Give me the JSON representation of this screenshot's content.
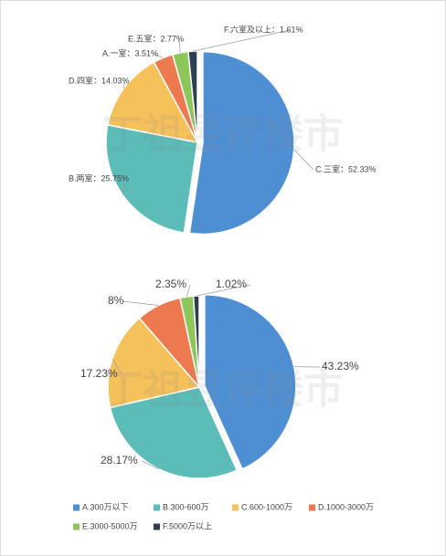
{
  "chart_data": [
    {
      "type": "pie",
      "watermark": "丁祖昱评楼市",
      "values": [
        52.33,
        25.75,
        14.03,
        3.51,
        2.77,
        1.61
      ],
      "value_labels": [
        "C.三室：52.33%",
        "B.两室：25.75%",
        "D.四室：14.03%",
        "A.一室：3.51%",
        "E.五室：2.77%",
        "F.六室及以上：1.61%"
      ],
      "colors": [
        "#4e8fd4",
        "#5bbcb8",
        "#f5c15b",
        "#ed7a4e",
        "#8dc65a",
        "#2f3f4f"
      ]
    },
    {
      "type": "pie",
      "watermark": "丁祖昱评楼市",
      "categories": [
        "A.300万以下",
        "B.300-600万",
        "C.600-1000万",
        "D.1000-3000万",
        "E.3000-5000万",
        "F.5000万以上"
      ],
      "values": [
        43.23,
        28.17,
        17.23,
        8,
        2.35,
        1.02
      ],
      "value_labels": [
        "43.23%",
        "28.17%",
        "17.23%",
        "8%",
        "2.35%",
        "1.02%"
      ],
      "colors": [
        "#4e8fd4",
        "#5bbcb8",
        "#f5c15b",
        "#ed7a4e",
        "#8dc65a",
        "#2f3f4f"
      ],
      "legend": "bottom"
    }
  ]
}
